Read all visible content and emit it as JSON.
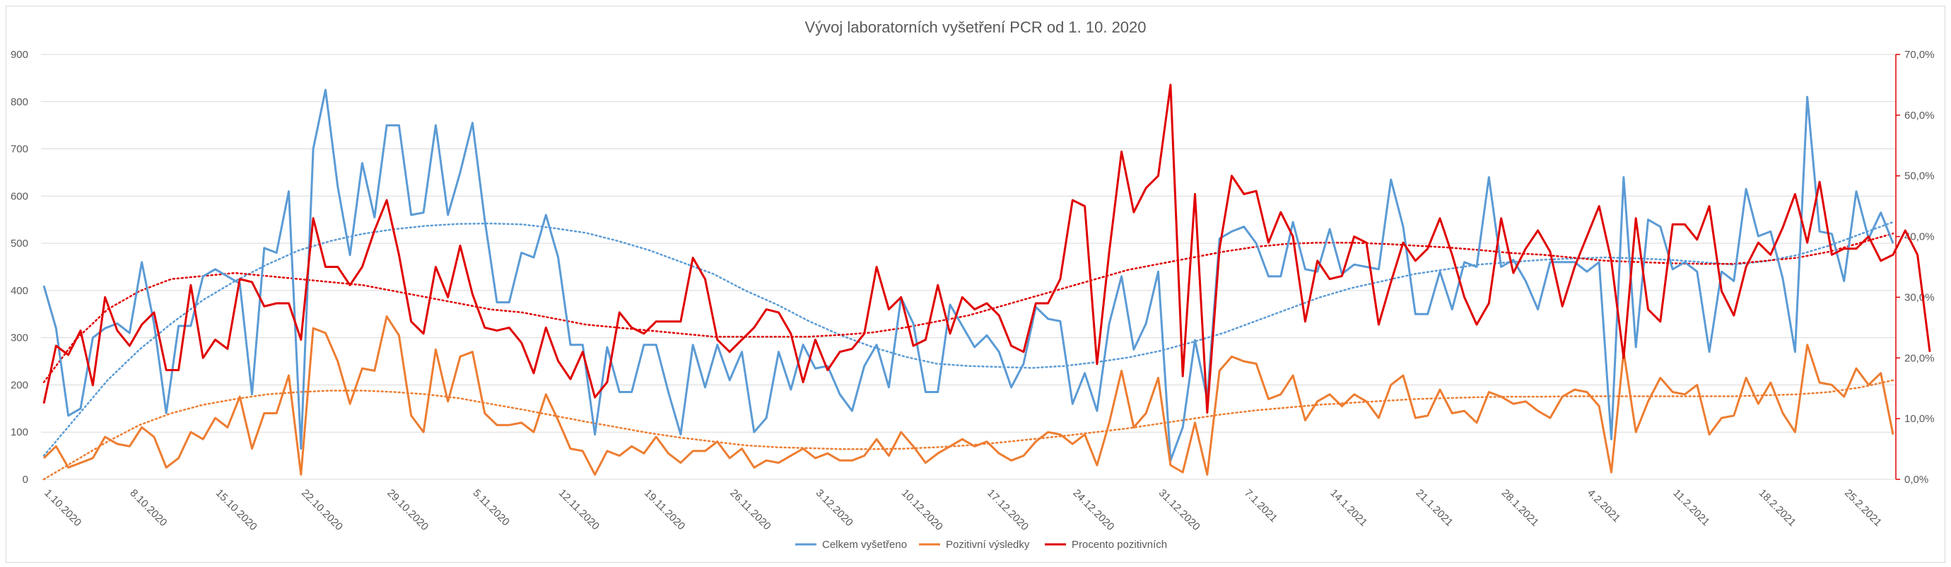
{
  "chart_data": {
    "type": "line",
    "title": "Vývoj laboratorních vyšetření PCR od 1. 10. 2020",
    "y_left": {
      "min": 0,
      "max": 900,
      "step": 100,
      "ticks": [
        "0",
        "100",
        "200",
        "300",
        "400",
        "500",
        "600",
        "700",
        "800",
        "900"
      ]
    },
    "y_right": {
      "min": 0,
      "max": 70,
      "step": 10,
      "ticks": [
        "0,0%",
        "10,0%",
        "20,0%",
        "30,0%",
        "40,0%",
        "50,0%",
        "60,0%",
        "70,0%"
      ]
    },
    "x_tick_labels": [
      "1.10.2020",
      "8.10.2020",
      "15.10.2020",
      "22.10.2020",
      "29.10.2020",
      "5.11.2020",
      "12.11.2020",
      "19.11.2020",
      "26.11.2020",
      "3.12.2020",
      "10.12.2020",
      "17.12.2020",
      "24.12.2020",
      "31.12.2020",
      "7.1.2021",
      "14.1.2021",
      "21.1.2021",
      "28.1.2021",
      "4.2.2021",
      "11.2.2021",
      "18.2.2021",
      "25.2.2021"
    ],
    "legend_position": "bottom",
    "trendlines": "polynomial, dotted",
    "series": [
      {
        "name": "Celkem vyšetřeno",
        "color": "#5B9BD5",
        "axis": "left",
        "values": [
          410,
          320,
          135,
          150,
          300,
          320,
          330,
          310,
          460,
          330,
          140,
          325,
          325,
          430,
          445,
          430,
          415,
          180,
          490,
          480,
          610,
          65,
          700,
          825,
          620,
          475,
          670,
          555,
          750,
          750,
          560,
          565,
          750,
          560,
          650,
          755,
          550,
          375,
          375,
          480,
          470,
          560,
          470,
          285,
          285,
          95,
          280,
          185,
          185,
          285,
          285,
          185,
          95,
          285,
          195,
          285,
          210,
          270,
          100,
          130,
          270,
          190,
          285,
          235,
          240,
          180,
          145,
          240,
          285,
          195,
          385,
          330,
          185,
          185,
          370,
          325,
          280,
          305,
          270,
          195,
          245,
          365,
          340,
          335,
          160,
          225,
          145,
          330,
          430,
          275,
          330,
          440,
          40,
          110,
          295,
          170,
          510,
          525,
          535,
          500,
          430,
          430,
          545,
          445,
          440,
          530,
          435,
          455,
          450,
          445,
          635,
          535,
          350,
          350,
          440,
          360,
          460,
          450,
          640,
          450,
          465,
          420,
          360,
          460,
          460,
          460,
          440,
          460,
          85,
          640,
          280,
          550,
          535,
          445,
          460,
          440,
          270,
          440,
          420,
          615,
          515,
          525,
          425,
          270,
          810,
          525,
          520,
          420,
          610,
          510,
          565,
          500
        ],
        "trend": [
          50,
          130,
          210,
          275,
          330,
          380,
          420,
          455,
          485,
          505,
          520,
          530,
          537,
          541,
          542,
          540,
          532,
          522,
          505,
          485,
          460,
          435,
          400,
          370,
          335,
          305,
          280,
          260,
          245,
          240,
          238,
          236,
          240,
          248,
          258,
          272,
          290,
          310,
          335,
          360,
          385,
          405,
          420,
          435,
          445,
          455,
          460,
          465,
          468,
          470,
          468,
          465,
          460,
          455,
          462,
          475,
          495,
          520,
          545
        ]
      },
      {
        "name": "Pozitivní výsledky",
        "color": "#ED7D31",
        "axis": "left",
        "values": [
          45,
          70,
          25,
          35,
          45,
          90,
          75,
          70,
          110,
          90,
          25,
          45,
          100,
          85,
          130,
          110,
          175,
          65,
          140,
          140,
          220,
          10,
          320,
          310,
          250,
          160,
          235,
          230,
          345,
          305,
          135,
          100,
          275,
          165,
          260,
          270,
          140,
          115,
          115,
          120,
          100,
          180,
          125,
          65,
          60,
          10,
          60,
          50,
          70,
          55,
          90,
          55,
          35,
          60,
          60,
          80,
          45,
          65,
          25,
          40,
          35,
          50,
          65,
          45,
          55,
          40,
          40,
          50,
          85,
          50,
          100,
          70,
          35,
          55,
          70,
          85,
          70,
          80,
          55,
          40,
          50,
          80,
          100,
          95,
          75,
          95,
          30,
          120,
          230,
          110,
          140,
          215,
          30,
          15,
          120,
          10,
          230,
          260,
          250,
          245,
          170,
          180,
          220,
          125,
          165,
          180,
          155,
          180,
          165,
          130,
          200,
          220,
          130,
          135,
          190,
          140,
          145,
          120,
          185,
          175,
          160,
          165,
          145,
          130,
          175,
          190,
          185,
          155,
          15,
          270,
          100,
          165,
          215,
          185,
          180,
          200,
          95,
          130,
          135,
          215,
          160,
          205,
          140,
          100,
          285,
          205,
          200,
          175,
          235,
          200,
          225,
          95
        ],
        "trend": [
          0,
          40,
          80,
          115,
          140,
          158,
          170,
          180,
          185,
          188,
          188,
          185,
          180,
          172,
          160,
          148,
          135,
          122,
          110,
          98,
          88,
          80,
          72,
          68,
          66,
          64,
          64,
          65,
          68,
          72,
          78,
          85,
          92,
          100,
          108,
          118,
          128,
          138,
          146,
          152,
          158,
          162,
          166,
          170,
          172,
          174,
          175,
          175,
          176,
          176,
          176,
          176,
          176,
          176,
          178,
          180,
          185,
          195,
          210
        ]
      },
      {
        "name": "Procento pozitivních",
        "color": "#E00000",
        "axis": "right",
        "values": [
          12.5,
          22,
          20.5,
          24.5,
          15.5,
          30,
          24.5,
          22,
          25.5,
          27.5,
          18,
          18,
          32,
          20,
          23,
          21.5,
          33,
          32.5,
          28.5,
          29,
          29,
          23,
          43,
          35,
          35,
          32,
          35,
          41,
          46,
          37,
          26,
          24,
          35,
          30,
          38.5,
          30.5,
          25,
          24.5,
          25,
          22.5,
          17.5,
          25,
          19.5,
          16.5,
          21,
          13.5,
          16,
          27.5,
          25,
          24,
          26,
          26,
          26,
          36.5,
          33,
          23,
          21,
          23,
          25,
          28,
          27.5,
          24,
          16,
          23,
          18,
          21,
          21.5,
          24,
          35,
          28,
          30,
          22,
          23,
          32,
          24,
          30,
          28,
          29,
          27,
          22,
          21,
          29,
          29,
          33,
          46,
          45,
          19,
          37.5,
          54,
          44,
          48,
          50,
          65,
          17,
          47,
          11,
          38,
          50,
          47,
          47.5,
          39,
          44,
          40,
          26,
          36,
          33,
          33.5,
          40,
          39,
          25.5,
          32.5,
          39,
          36,
          38,
          43,
          37,
          30,
          25.5,
          29,
          43,
          34,
          38,
          41,
          37.5,
          28.5,
          35,
          40,
          45,
          36,
          20,
          43,
          28,
          26,
          42,
          42,
          39.5,
          45,
          31,
          27,
          35,
          39,
          37,
          41.5,
          47,
          39,
          49,
          37,
          38,
          38,
          40,
          36,
          37,
          41,
          37,
          21
        ],
        "trend": [
          16,
          23,
          28,
          31,
          33,
          33.5,
          34,
          33.5,
          33,
          32.5,
          32,
          31,
          30,
          29,
          28,
          27.5,
          26.5,
          25.5,
          25,
          24.5,
          24,
          23.5,
          23.5,
          23.5,
          23.5,
          23.8,
          24.2,
          25,
          26,
          27,
          28.5,
          30,
          31.5,
          33,
          34.5,
          35.5,
          36.5,
          37.5,
          38.3,
          38.8,
          39,
          39,
          38.8,
          38.5,
          38.2,
          37.8,
          37.3,
          37,
          36.5,
          36,
          35.8,
          35.6,
          35.5,
          35.5,
          36,
          36.5,
          37.5,
          39,
          40.5
        ]
      }
    ]
  }
}
